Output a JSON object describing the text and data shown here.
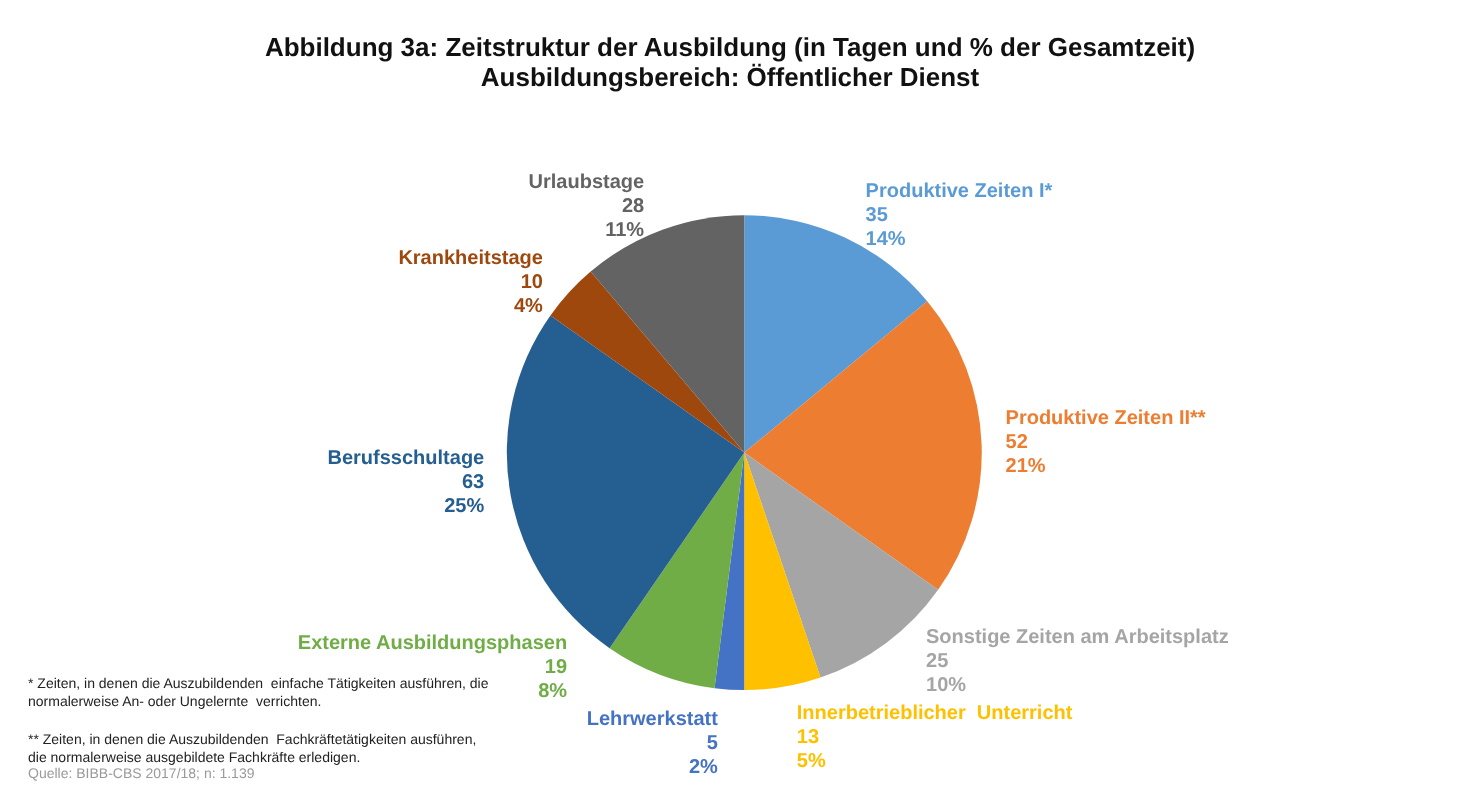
{
  "chart_data": {
    "type": "pie",
    "title": "Abbildung 3a: Zeitstruktur der Ausbildung (in Tagen und % der Gesamtzeit)",
    "subtitle": "Ausbildungsbereich: Öffentlicher Dienst",
    "categories": [
      "Produktive Zeiten I*",
      "Produktive Zeiten II**",
      "Sonstige Zeiten am Arbeitsplatz",
      "Innerbetrieblicher  Unterricht",
      "Lehrwerkstatt",
      "Externe Ausbildungsphasen",
      "Berufsschultage",
      "Krankheitstage",
      "Urlaubstage"
    ],
    "values": [
      35,
      52,
      25,
      13,
      5,
      19,
      63,
      10,
      28
    ],
    "value_labels": [
      "35\n14%",
      "52\n21%",
      "25\n10%",
      "13\n5%",
      "5\n2%",
      "19\n8%",
      "63\n25%",
      "10\n4%",
      "28\n11%"
    ],
    "colors": [
      "#5b9bd5",
      "#ed7d31",
      "#a5a5a5",
      "#ffc000",
      "#4472c4",
      "#70ad47",
      "#255e91",
      "#9e480e",
      "#636363"
    ],
    "annotations": [
      "* Zeiten, in denen die Auszubildenden  einfache Tätigkeiten ausführen, die\nnormalerweise An- oder Ungelernte  verrichten.",
      "** Zeiten, in denen die Auszubildenden  Fachkräftetätigkeiten ausführen,\ndie normalerweise ausgebildete Fachkräfte erledigen.",
      "Quelle: BIBB-CBS 2017/18; n: 1.139"
    ],
    "legend": false
  }
}
